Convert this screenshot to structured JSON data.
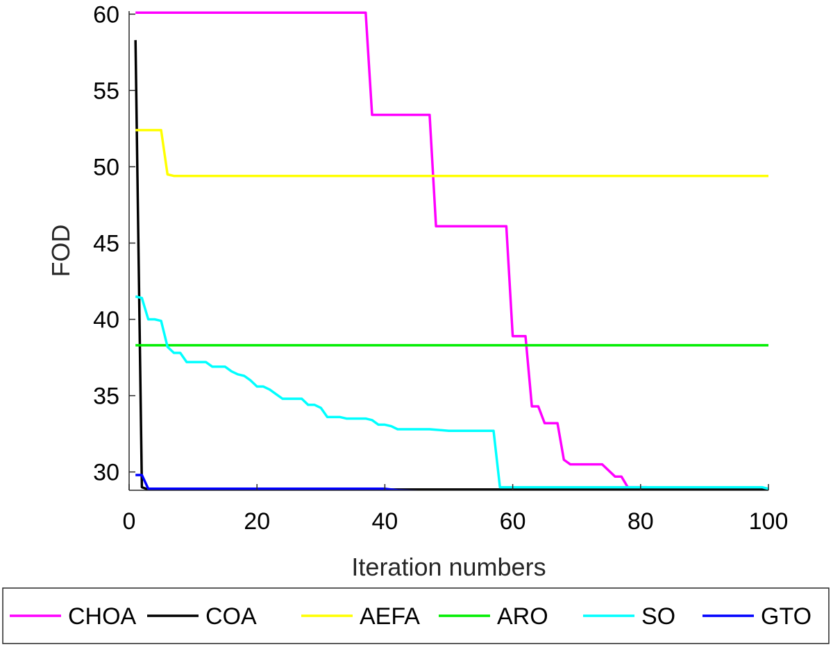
{
  "chart_data": {
    "type": "line",
    "title": "",
    "xlabel": "Iteration numbers",
    "ylabel": "FOD",
    "xlim": [
      0,
      100
    ],
    "ylim": [
      28.8,
      60.2
    ],
    "xticks": [
      0,
      20,
      40,
      60,
      80,
      100
    ],
    "yticks": [
      30,
      35,
      40,
      45,
      50,
      55,
      60
    ],
    "grid": false,
    "legend_position": "bottom, horizontal, outside plot",
    "series": [
      {
        "name": "CHOA",
        "color": "#ff00ff",
        "points": [
          [
            1,
            60.1
          ],
          [
            37,
            60.1
          ],
          [
            38,
            53.4
          ],
          [
            47,
            53.4
          ],
          [
            48,
            46.1
          ],
          [
            59,
            46.1
          ],
          [
            60,
            38.9
          ],
          [
            62,
            38.9
          ],
          [
            63,
            34.3
          ],
          [
            64,
            34.3
          ],
          [
            65,
            33.2
          ],
          [
            67,
            33.2
          ],
          [
            68,
            30.8
          ],
          [
            69,
            30.5
          ],
          [
            74,
            30.5
          ],
          [
            76,
            29.7
          ],
          [
            77,
            29.7
          ],
          [
            78,
            29.0
          ],
          [
            81,
            29.0
          ],
          [
            82,
            28.85
          ],
          [
            100,
            28.85
          ]
        ]
      },
      {
        "name": "COA",
        "color": "#000000",
        "points": [
          [
            1,
            58.3
          ],
          [
            2,
            29.0
          ],
          [
            3,
            28.85
          ],
          [
            100,
            28.85
          ]
        ]
      },
      {
        "name": "AEFA",
        "color": "#ffff00",
        "points": [
          [
            1,
            52.4
          ],
          [
            5,
            52.4
          ],
          [
            6,
            49.5
          ],
          [
            7,
            49.4
          ],
          [
            100,
            49.4
          ]
        ]
      },
      {
        "name": "ARO",
        "color": "#00ee00",
        "points": [
          [
            1,
            38.3
          ],
          [
            100,
            38.3
          ]
        ]
      },
      {
        "name": "SO",
        "color": "#00ffff",
        "points": [
          [
            1,
            41.5
          ],
          [
            2,
            41.4
          ],
          [
            3,
            40.0
          ],
          [
            4,
            40.0
          ],
          [
            5,
            39.9
          ],
          [
            6,
            38.2
          ],
          [
            7,
            37.8
          ],
          [
            8,
            37.8
          ],
          [
            9,
            37.2
          ],
          [
            10,
            37.2
          ],
          [
            12,
            37.2
          ],
          [
            13,
            36.9
          ],
          [
            15,
            36.9
          ],
          [
            16,
            36.6
          ],
          [
            17,
            36.4
          ],
          [
            18,
            36.3
          ],
          [
            19,
            36.0
          ],
          [
            20,
            35.6
          ],
          [
            21,
            35.6
          ],
          [
            22,
            35.4
          ],
          [
            23,
            35.1
          ],
          [
            24,
            34.8
          ],
          [
            27,
            34.8
          ],
          [
            28,
            34.4
          ],
          [
            29,
            34.4
          ],
          [
            30,
            34.2
          ],
          [
            31,
            33.6
          ],
          [
            33,
            33.6
          ],
          [
            34,
            33.5
          ],
          [
            37,
            33.5
          ],
          [
            38,
            33.4
          ],
          [
            39,
            33.1
          ],
          [
            40,
            33.1
          ],
          [
            41,
            33.0
          ],
          [
            42,
            32.8
          ],
          [
            45,
            32.8
          ],
          [
            47,
            32.8
          ],
          [
            50,
            32.7
          ],
          [
            57,
            32.7
          ],
          [
            58,
            29.0
          ],
          [
            99,
            29.0
          ],
          [
            100,
            28.9
          ]
        ]
      },
      {
        "name": "GTO",
        "color": "#0000ff",
        "points": [
          [
            1,
            29.8
          ],
          [
            2,
            29.8
          ],
          [
            3,
            28.9
          ],
          [
            40,
            28.9
          ],
          [
            42,
            28.8
          ],
          [
            45,
            28.75
          ],
          [
            55,
            28.7
          ],
          [
            60,
            28.65
          ],
          [
            100,
            28.65
          ]
        ]
      }
    ]
  }
}
